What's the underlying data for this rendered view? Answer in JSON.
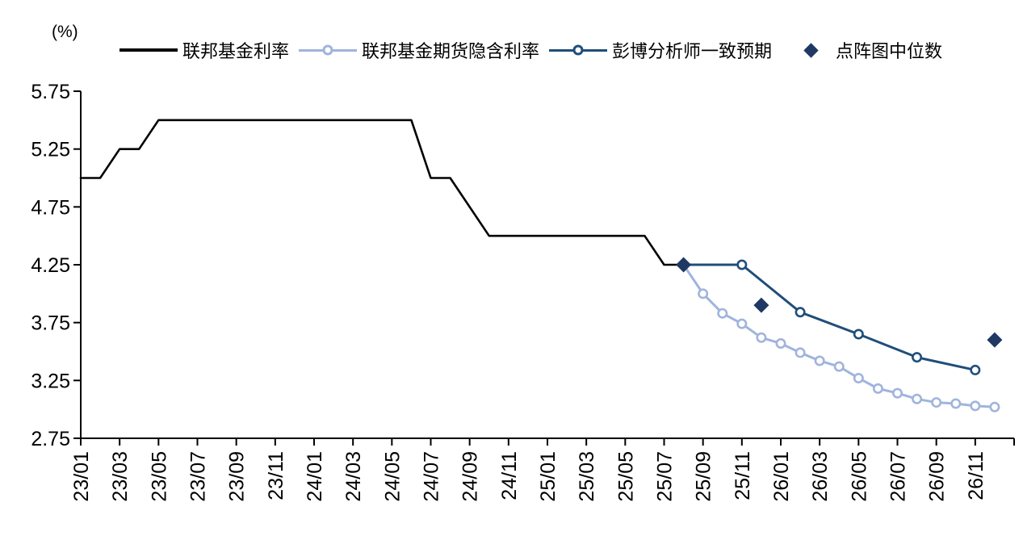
{
  "unit_label": "(%)",
  "colors": {
    "background": "#ffffff",
    "axis": "#000000",
    "fed_funds": "#000000",
    "futures_implied": "#A0B4DC",
    "analyst_consensus": "#1F4E79",
    "dot_plot_median": "#1F3864"
  },
  "chart_data": {
    "type": "line",
    "title": "",
    "xlabel": "",
    "ylabel": "(%)",
    "grid": false,
    "legend_position": "top",
    "x_unit": "months since 2023-01 (m=0)",
    "x_range": [
      0,
      48
    ],
    "x_tick_step": 2,
    "x_tick_labels": [
      "23/01",
      "23/03",
      "23/05",
      "23/07",
      "23/09",
      "23/11",
      "24/01",
      "24/03",
      "24/05",
      "24/07",
      "24/09",
      "24/11",
      "25/01",
      "25/03",
      "25/05",
      "25/07",
      "25/09",
      "25/11",
      "26/01",
      "26/03",
      "26/05",
      "26/07",
      "26/09",
      "26/11"
    ],
    "ylim": [
      2.75,
      5.75
    ],
    "y_tick_step": 0.5,
    "y_tick_labels": [
      "2.75",
      "3.25",
      "3.75",
      "4.25",
      "4.75",
      "5.25",
      "5.75"
    ],
    "series": [
      {
        "name": "联邦基金利率",
        "type": "line",
        "color": "#000000",
        "width": 2.6,
        "marker": "none",
        "points": [
          [
            0,
            5.0
          ],
          [
            1,
            5.0
          ],
          [
            2,
            5.25
          ],
          [
            3,
            5.25
          ],
          [
            4,
            5.5
          ],
          [
            17,
            5.5
          ],
          [
            18,
            5.0
          ],
          [
            19,
            5.0
          ],
          [
            21,
            4.5
          ],
          [
            29,
            4.5
          ],
          [
            30,
            4.25
          ],
          [
            31,
            4.25
          ]
        ]
      },
      {
        "name": "联邦基金期货隐含利率",
        "type": "line",
        "color": "#A0B4DC",
        "width": 3,
        "marker": "circle-open",
        "marker_from": 1,
        "points": [
          [
            31,
            4.25
          ],
          [
            32,
            4.0
          ],
          [
            33,
            3.83
          ],
          [
            34,
            3.74
          ],
          [
            35,
            3.62
          ],
          [
            36,
            3.57
          ],
          [
            37,
            3.49
          ],
          [
            38,
            3.42
          ],
          [
            39,
            3.37
          ],
          [
            40,
            3.27
          ],
          [
            41,
            3.18
          ],
          [
            42,
            3.14
          ],
          [
            43,
            3.09
          ],
          [
            44,
            3.06
          ],
          [
            45,
            3.05
          ],
          [
            46,
            3.03
          ],
          [
            47,
            3.02
          ]
        ]
      },
      {
        "name": "彭博分析师一致预期",
        "type": "line",
        "color": "#1F4E79",
        "width": 3,
        "marker": "circle-open",
        "marker_from": 1,
        "points": [
          [
            31,
            4.25
          ],
          [
            34,
            4.25
          ],
          [
            37,
            3.84
          ],
          [
            40,
            3.65
          ],
          [
            43,
            3.45
          ],
          [
            46,
            3.34
          ]
        ]
      },
      {
        "name": "点阵图中位数",
        "type": "scatter",
        "color": "#1F3864",
        "marker": "diamond",
        "points": [
          [
            31,
            4.25
          ],
          [
            35,
            3.9
          ],
          [
            47,
            3.6
          ]
        ]
      }
    ]
  }
}
